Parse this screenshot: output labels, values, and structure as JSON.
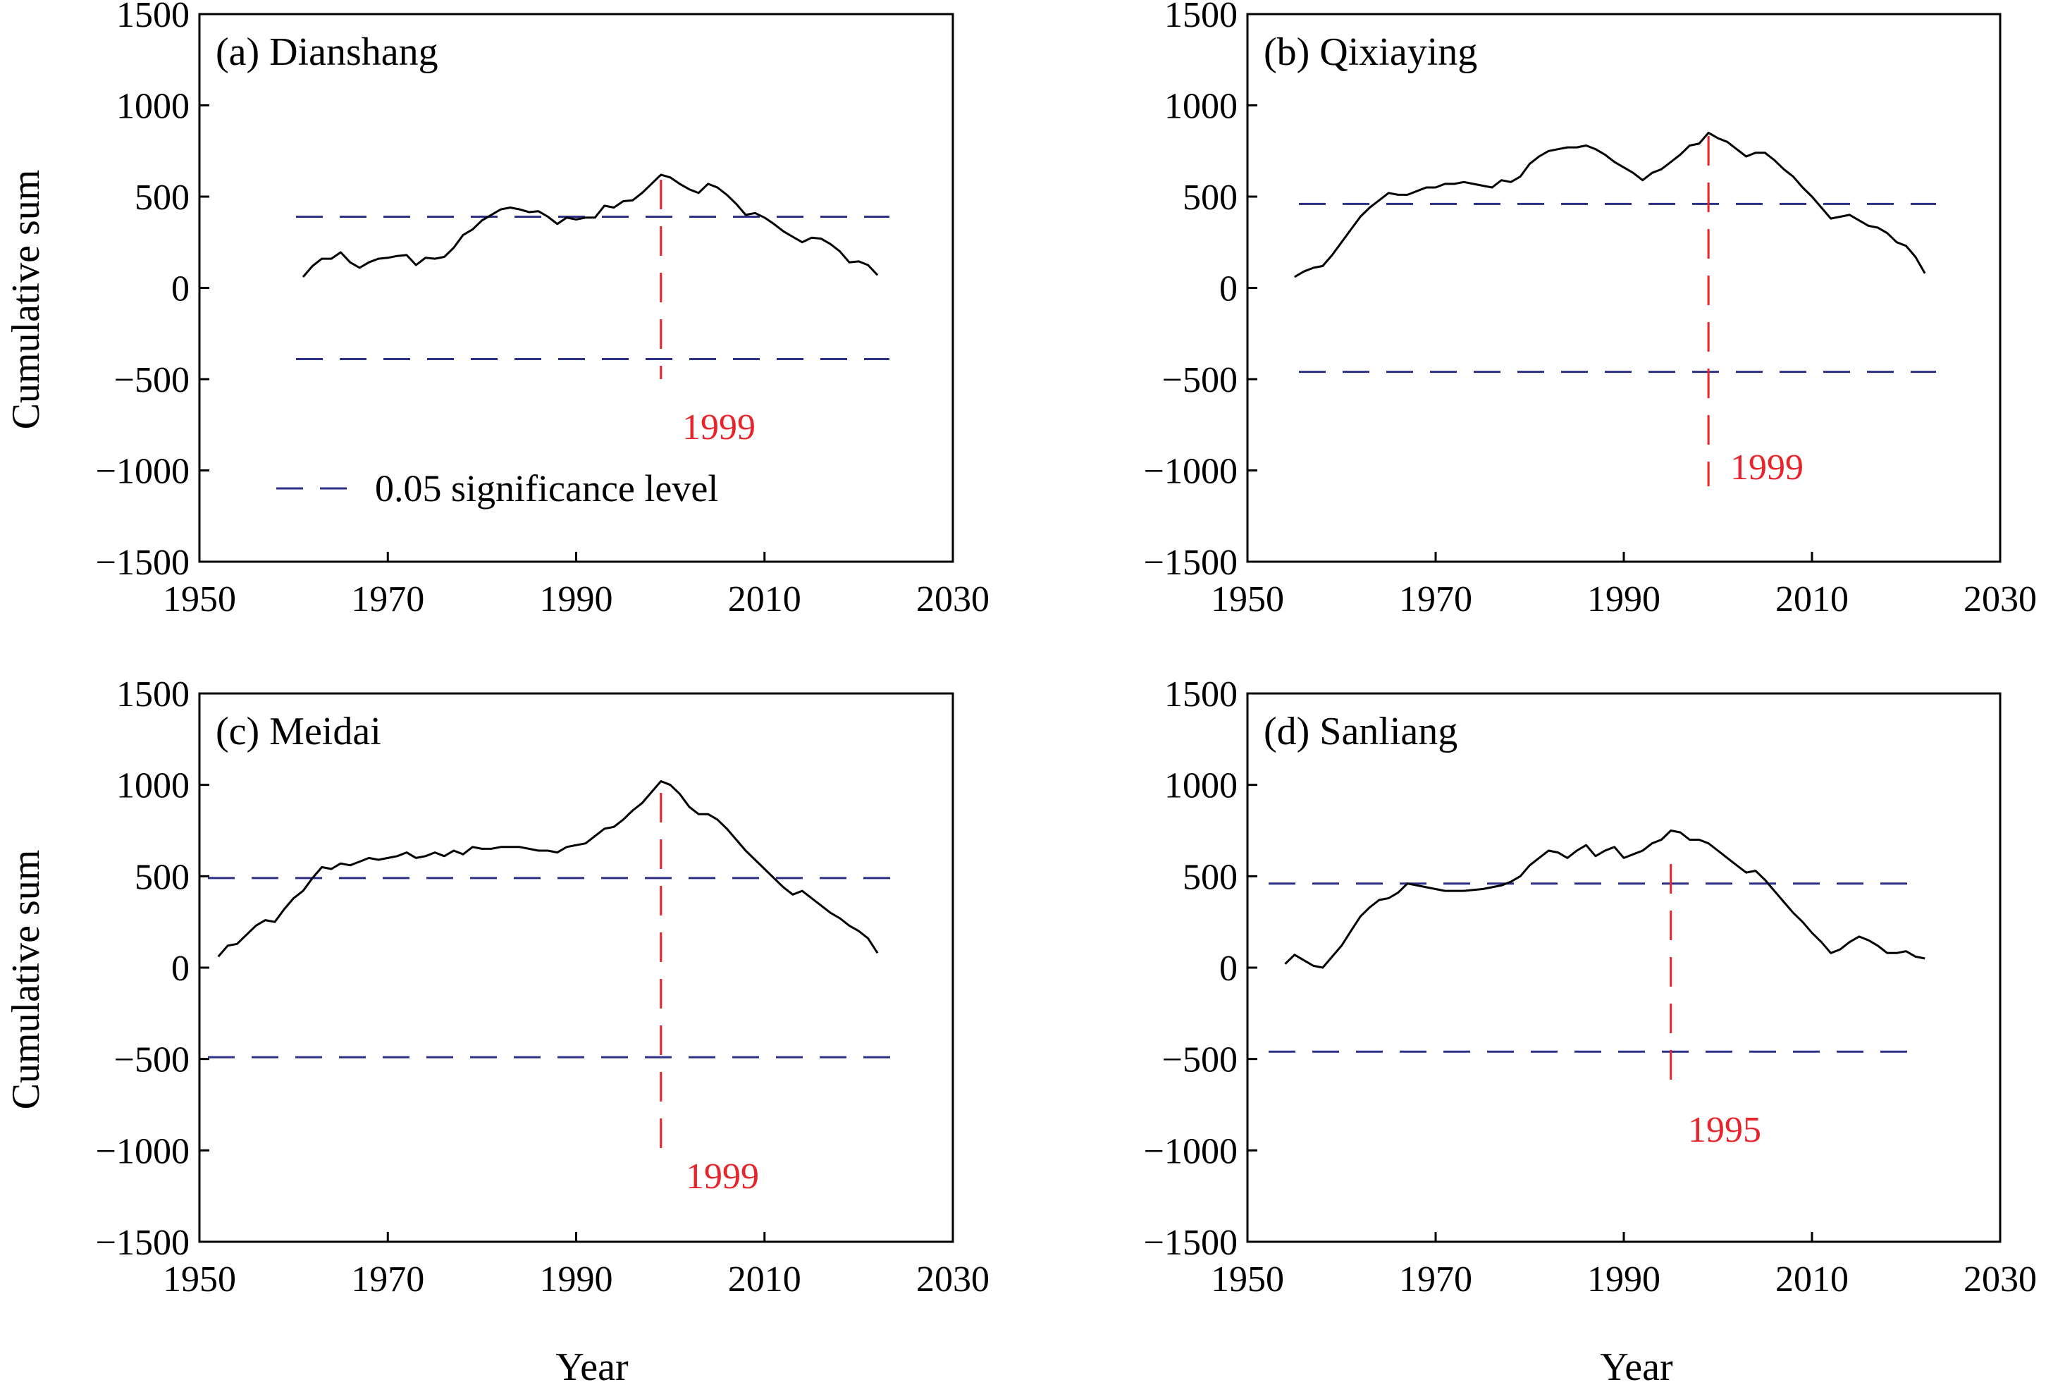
{
  "colors": {
    "series": "#000000",
    "significance": "#2b2f86",
    "change_point": "#e8242b"
  },
  "xlabel": "Year",
  "ylabel": "Cumulative sum",
  "legend": {
    "label": "0.05 significance level"
  },
  "chart_data": [
    {
      "type": "line",
      "title": "(a) Dianshang",
      "xlabel": "",
      "ylabel": "Cumulative sum",
      "xlim": [
        1950,
        2030
      ],
      "ylim": [
        -1500,
        1500
      ],
      "xticks": [
        1950,
        1970,
        1990,
        2010,
        2030
      ],
      "yticks": [
        1500,
        1000,
        500,
        0,
        -500,
        -1000,
        -1500
      ],
      "significance": [
        390,
        -390
      ],
      "change_point": {
        "year": 1999,
        "label": "1999"
      },
      "series": [
        {
          "x": [
            1961,
            1962,
            1963,
            1964,
            1965,
            1966,
            1967,
            1968,
            1969,
            1970,
            1971,
            1972,
            1973,
            1974,
            1975,
            1976,
            1977,
            1978,
            1979,
            1980,
            1981,
            1982,
            1983,
            1984,
            1985,
            1986,
            1987,
            1988,
            1989,
            1990,
            1991,
            1992,
            1993,
            1994,
            1995,
            1996,
            1997,
            1998,
            1999,
            2000,
            2001,
            2002,
            2003,
            2004,
            2005,
            2006,
            2007,
            2008,
            2009,
            2010,
            2011,
            2012,
            2013,
            2014,
            2015,
            2016,
            2017,
            2018,
            2019,
            2020,
            2021,
            2022
          ],
          "y": [
            60,
            120,
            160,
            160,
            195,
            140,
            110,
            140,
            160,
            165,
            175,
            180,
            125,
            165,
            160,
            170,
            220,
            290,
            320,
            370,
            400,
            430,
            440,
            430,
            415,
            420,
            390,
            350,
            385,
            375,
            385,
            385,
            450,
            440,
            475,
            480,
            520,
            570,
            620,
            605,
            570,
            540,
            520,
            570,
            550,
            510,
            460,
            400,
            410,
            385,
            350,
            310,
            280,
            250,
            275,
            270,
            240,
            200,
            140,
            145,
            125,
            70
          ]
        }
      ]
    },
    {
      "type": "line",
      "title": "(b) Qixiaying",
      "xlabel": "",
      "ylabel": "",
      "xlim": [
        1950,
        2030
      ],
      "ylim": [
        -1500,
        1500
      ],
      "xticks": [
        1950,
        1970,
        1990,
        2010,
        2030
      ],
      "yticks": [
        1500,
        1000,
        500,
        0,
        -500,
        -1000,
        -1500
      ],
      "significance": [
        460,
        -460
      ],
      "change_point": {
        "year": 1999,
        "label": "1999"
      },
      "series": [
        {
          "x": [
            1955,
            1956,
            1957,
            1958,
            1959,
            1960,
            1961,
            1962,
            1963,
            1964,
            1965,
            1966,
            1967,
            1968,
            1969,
            1970,
            1971,
            1972,
            1973,
            1974,
            1975,
            1976,
            1977,
            1978,
            1979,
            1980,
            1981,
            1982,
            1983,
            1984,
            1985,
            1986,
            1987,
            1988,
            1989,
            1990,
            1991,
            1992,
            1993,
            1994,
            1995,
            1996,
            1997,
            1998,
            1999,
            2000,
            2001,
            2002,
            2003,
            2004,
            2005,
            2006,
            2007,
            2008,
            2009,
            2010,
            2011,
            2012,
            2013,
            2014,
            2015,
            2016,
            2017,
            2018,
            2019,
            2020,
            2021,
            2022
          ],
          "y": [
            60,
            90,
            110,
            120,
            180,
            250,
            320,
            390,
            440,
            480,
            520,
            510,
            510,
            530,
            550,
            550,
            570,
            570,
            580,
            570,
            560,
            550,
            590,
            580,
            610,
            680,
            720,
            750,
            760,
            770,
            770,
            780,
            760,
            730,
            690,
            660,
            630,
            590,
            630,
            650,
            690,
            730,
            780,
            790,
            850,
            820,
            800,
            760,
            720,
            740,
            740,
            700,
            650,
            610,
            550,
            500,
            440,
            380,
            390,
            400,
            370,
            340,
            330,
            300,
            250,
            230,
            170,
            80
          ]
        }
      ]
    },
    {
      "type": "line",
      "title": "(c) Meidai",
      "xlabel": "Year",
      "ylabel": "Cumulative sum",
      "xlim": [
        1950,
        2030
      ],
      "ylim": [
        -1500,
        1500
      ],
      "xticks": [
        1950,
        1970,
        1990,
        2010,
        2030
      ],
      "yticks": [
        1500,
        1000,
        500,
        0,
        -500,
        -1000,
        -1500
      ],
      "significance": [
        490,
        -490
      ],
      "change_point": {
        "year": 1999,
        "label": "1999"
      },
      "series": [
        {
          "x": [
            1952,
            1953,
            1954,
            1955,
            1956,
            1957,
            1958,
            1959,
            1960,
            1961,
            1962,
            1963,
            1964,
            1965,
            1966,
            1967,
            1968,
            1969,
            1970,
            1971,
            1972,
            1973,
            1974,
            1975,
            1976,
            1977,
            1978,
            1979,
            1980,
            1981,
            1982,
            1983,
            1984,
            1985,
            1986,
            1987,
            1988,
            1989,
            1990,
            1991,
            1992,
            1993,
            1994,
            1995,
            1996,
            1997,
            1998,
            1999,
            2000,
            2001,
            2002,
            2003,
            2004,
            2005,
            2006,
            2007,
            2008,
            2009,
            2010,
            2011,
            2012,
            2013,
            2014,
            2015,
            2016,
            2017,
            2018,
            2019,
            2020,
            2021,
            2022
          ],
          "y": [
            60,
            120,
            130,
            180,
            230,
            260,
            250,
            320,
            380,
            420,
            490,
            550,
            540,
            570,
            560,
            580,
            600,
            590,
            600,
            610,
            630,
            600,
            610,
            630,
            610,
            640,
            620,
            660,
            650,
            650,
            660,
            660,
            660,
            650,
            640,
            640,
            630,
            660,
            670,
            680,
            720,
            760,
            770,
            810,
            860,
            900,
            960,
            1020,
            1000,
            950,
            880,
            840,
            840,
            810,
            760,
            700,
            640,
            590,
            540,
            490,
            440,
            400,
            420,
            380,
            340,
            300,
            270,
            230,
            200,
            160,
            80
          ]
        }
      ]
    },
    {
      "type": "line",
      "title": "(d) Sanliang",
      "xlabel": "Year",
      "ylabel": "",
      "xlim": [
        1950,
        2030
      ],
      "ylim": [
        -1500,
        1500
      ],
      "xticks": [
        1950,
        1970,
        1990,
        2010,
        2030
      ],
      "yticks": [
        1500,
        1000,
        500,
        0,
        -500,
        -1000,
        -1500
      ],
      "significance": [
        460,
        -460
      ],
      "change_point": {
        "year": 1995,
        "label": "1995"
      },
      "series": [
        {
          "x": [
            1954,
            1955,
            1956,
            1957,
            1958,
            1959,
            1960,
            1961,
            1962,
            1963,
            1964,
            1965,
            1966,
            1967,
            1968,
            1969,
            1970,
            1971,
            1972,
            1973,
            1974,
            1975,
            1976,
            1977,
            1978,
            1979,
            1980,
            1981,
            1982,
            1983,
            1984,
            1985,
            1986,
            1987,
            1988,
            1989,
            1990,
            1991,
            1992,
            1993,
            1994,
            1995,
            1996,
            1997,
            1998,
            1999,
            2000,
            2001,
            2002,
            2003,
            2004,
            2005,
            2006,
            2007,
            2008,
            2009,
            2010,
            2011,
            2012,
            2013,
            2014,
            2015,
            2016,
            2017,
            2018,
            2019,
            2020,
            2021,
            2022
          ],
          "y": [
            20,
            70,
            40,
            10,
            0,
            60,
            120,
            200,
            280,
            330,
            370,
            380,
            410,
            460,
            450,
            440,
            430,
            420,
            420,
            420,
            425,
            430,
            440,
            450,
            470,
            500,
            560,
            600,
            640,
            630,
            600,
            640,
            670,
            610,
            640,
            660,
            600,
            620,
            640,
            680,
            700,
            750,
            740,
            700,
            700,
            680,
            640,
            600,
            560,
            520,
            530,
            480,
            420,
            360,
            300,
            250,
            190,
            140,
            80,
            100,
            140,
            170,
            150,
            120,
            80,
            80,
            90,
            60,
            50
          ]
        }
      ]
    }
  ]
}
